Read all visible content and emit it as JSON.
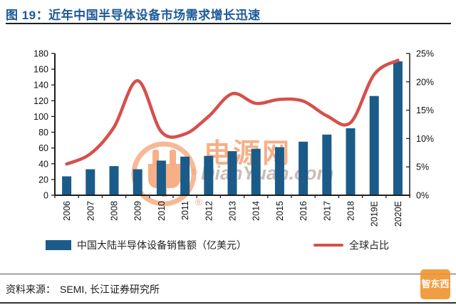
{
  "header": {
    "title": "图 19：近年中国半导体设备市场需求增长迅速"
  },
  "footer": {
    "source_label": "资料来源：",
    "source_text": "SEMI, 长江证券研究所"
  },
  "watermark": {
    "cn_text": "电源网",
    "en_text": "DianYuan.com",
    "reg_mark": "®",
    "stamp_text": "智东西"
  },
  "colors": {
    "title_blue": "#1C5A96",
    "bar_blue": "#1B5B89",
    "line_red": "#D6504A",
    "axis_black": "#1f1f1f",
    "watermark_orange": "#F39460",
    "watermark_gray": "#C1B2A8"
  },
  "chart_data": {
    "type": "bar",
    "combo": "bar+line",
    "categories": [
      "2006",
      "2007",
      "2008",
      "2009",
      "2010",
      "2011",
      "2012",
      "2013",
      "2014",
      "2015",
      "2016",
      "2017",
      "2018",
      "2019E",
      "2020E"
    ],
    "series": [
      {
        "name": "中国大陆半导体设备销售额（亿美元）",
        "type": "bar",
        "axis": "left",
        "values": [
          24,
          33,
          37,
          33,
          44,
          49,
          50,
          56,
          59,
          61,
          68,
          77,
          85,
          126,
          170
        ]
      },
      {
        "name": "全球占比",
        "type": "line",
        "axis": "right",
        "values": [
          5.5,
          7.3,
          12.0,
          20.2,
          11.2,
          10.8,
          13.9,
          17.9,
          16.2,
          16.9,
          16.6,
          14.0,
          12.8,
          21.3,
          23.8
        ]
      }
    ],
    "left_axis": {
      "min": 0,
      "max": 180,
      "step": 20,
      "labels": [
        "0",
        "20",
        "40",
        "60",
        "80",
        "100",
        "120",
        "140",
        "160",
        "180"
      ]
    },
    "right_axis": {
      "min": 0,
      "max": 25,
      "step": 5,
      "labels": [
        "0%",
        "5%",
        "10%",
        "15%",
        "20%",
        "25%"
      ]
    },
    "grid": false,
    "legend_position": "bottom"
  }
}
